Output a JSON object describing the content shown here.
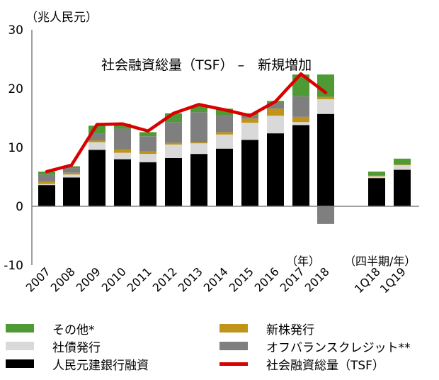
{
  "chart_data": {
    "type": "bar",
    "title": "社会融資総量（TSF） –　新規増加",
    "ylabel": "（兆人民元）",
    "ylim": [
      -10,
      30
    ],
    "yticks": [
      "30",
      "20",
      "10",
      "0",
      "-10"
    ],
    "ytick_values": [
      30,
      20,
      10,
      0,
      -10
    ],
    "categories": [
      "2007",
      "2008",
      "2009",
      "2010",
      "2011",
      "2012",
      "2013",
      "2014",
      "2015",
      "2016",
      "2017",
      "2018",
      "1Q18",
      "1Q19"
    ],
    "group_labels": {
      "annual": "（年）",
      "quarterly": "（四半期/年）"
    },
    "stack_order": [
      "loans",
      "bonds",
      "equity",
      "offbalance",
      "other"
    ],
    "series": [
      {
        "key": "loans",
        "name": "人民元建銀行融資",
        "color": "#000000",
        "values": [
          3.6,
          4.9,
          9.6,
          8.0,
          7.5,
          8.2,
          8.9,
          9.8,
          11.3,
          12.4,
          13.8,
          15.7,
          4.8,
          6.2
        ]
      },
      {
        "key": "bonds",
        "name": "社債発行",
        "color": "#d9d9d9",
        "values": [
          0.2,
          0.5,
          1.3,
          1.1,
          1.4,
          2.3,
          1.8,
          2.4,
          2.9,
          3.0,
          0.5,
          2.5,
          0.3,
          0.8
        ]
      },
      {
        "key": "equity",
        "name": "新株発行",
        "color": "#c09418",
        "values": [
          0.4,
          0.3,
          0.3,
          0.6,
          0.4,
          0.3,
          0.2,
          0.4,
          0.7,
          1.2,
          0.9,
          0.4,
          0.1,
          0.1
        ]
      },
      {
        "key": "offbalance",
        "name": "オフバランスクレジット**",
        "color": "#7f7f7f",
        "values": [
          1.2,
          0.8,
          1.2,
          3.5,
          2.6,
          3.5,
          5.1,
          2.8,
          0.6,
          1.0,
          3.5,
          -3.0,
          0.0,
          0.0
        ]
      },
      {
        "key": "other",
        "name": "その他*",
        "color": "#4e9a34",
        "values": [
          0.5,
          0.3,
          1.3,
          0.8,
          0.7,
          1.5,
          1.0,
          1.2,
          0.3,
          0.3,
          3.7,
          3.8,
          0.7,
          1.0
        ]
      }
    ],
    "line": {
      "name": "社会融資総量（TSF）",
      "color": "#d90000",
      "categories": [
        "2007",
        "2008",
        "2009",
        "2010",
        "2011",
        "2012",
        "2013",
        "2014",
        "2015",
        "2016",
        "2017",
        "2018"
      ],
      "values": [
        5.9,
        7.0,
        13.9,
        14.0,
        12.8,
        15.8,
        17.3,
        16.4,
        15.4,
        17.8,
        22.5,
        19.3
      ]
    },
    "legend": {
      "placement": "bottom",
      "items": [
        {
          "key": "other",
          "label": "その他*"
        },
        {
          "key": "equity",
          "label": "新株発行"
        },
        {
          "key": "bonds",
          "label": "社債発行"
        },
        {
          "key": "offbalance",
          "label": "オフバランスクレジット**"
        },
        {
          "key": "loans",
          "label": "人民元建銀行融資"
        },
        {
          "key": "tsf",
          "label": "社会融資総量（TSF）",
          "type": "line"
        }
      ]
    },
    "grid": false
  }
}
